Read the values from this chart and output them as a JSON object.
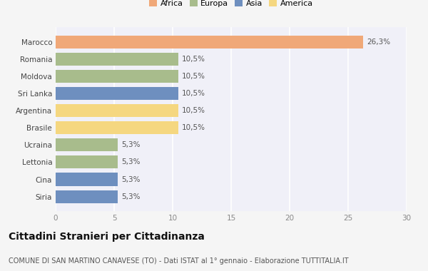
{
  "categories": [
    "Marocco",
    "Romania",
    "Moldova",
    "Sri Lanka",
    "Argentina",
    "Brasile",
    "Ucraina",
    "Lettonia",
    "Cina",
    "Siria"
  ],
  "values": [
    26.3,
    10.5,
    10.5,
    10.5,
    10.5,
    10.5,
    5.3,
    5.3,
    5.3,
    5.3
  ],
  "colors": [
    "#F0A878",
    "#A8BC8C",
    "#A8BC8C",
    "#6E8FBF",
    "#F5D780",
    "#F5D780",
    "#A8BC8C",
    "#A8BC8C",
    "#6E8FBF",
    "#6E8FBF"
  ],
  "bar_labels": [
    "26,3%",
    "10,5%",
    "10,5%",
    "10,5%",
    "10,5%",
    "10,5%",
    "5,3%",
    "5,3%",
    "5,3%",
    "5,3%"
  ],
  "legend_labels": [
    "Africa",
    "Europa",
    "Asia",
    "America"
  ],
  "legend_colors": [
    "#F0A878",
    "#A8BC8C",
    "#6E8FBF",
    "#F5D780"
  ],
  "xlim": [
    0,
    30
  ],
  "xticks": [
    0,
    5,
    10,
    15,
    20,
    25,
    30
  ],
  "title": "Cittadini Stranieri per Cittadinanza",
  "subtitle": "COMUNE DI SAN MARTINO CANAVESE (TO) - Dati ISTAT al 1° gennaio - Elaborazione TUTTITALIA.IT",
  "background_color": "#f5f5f5",
  "plot_background": "#f0f0f8",
  "title_fontsize": 10,
  "subtitle_fontsize": 7,
  "label_fontsize": 7.5,
  "tick_fontsize": 7.5,
  "legend_fontsize": 8
}
